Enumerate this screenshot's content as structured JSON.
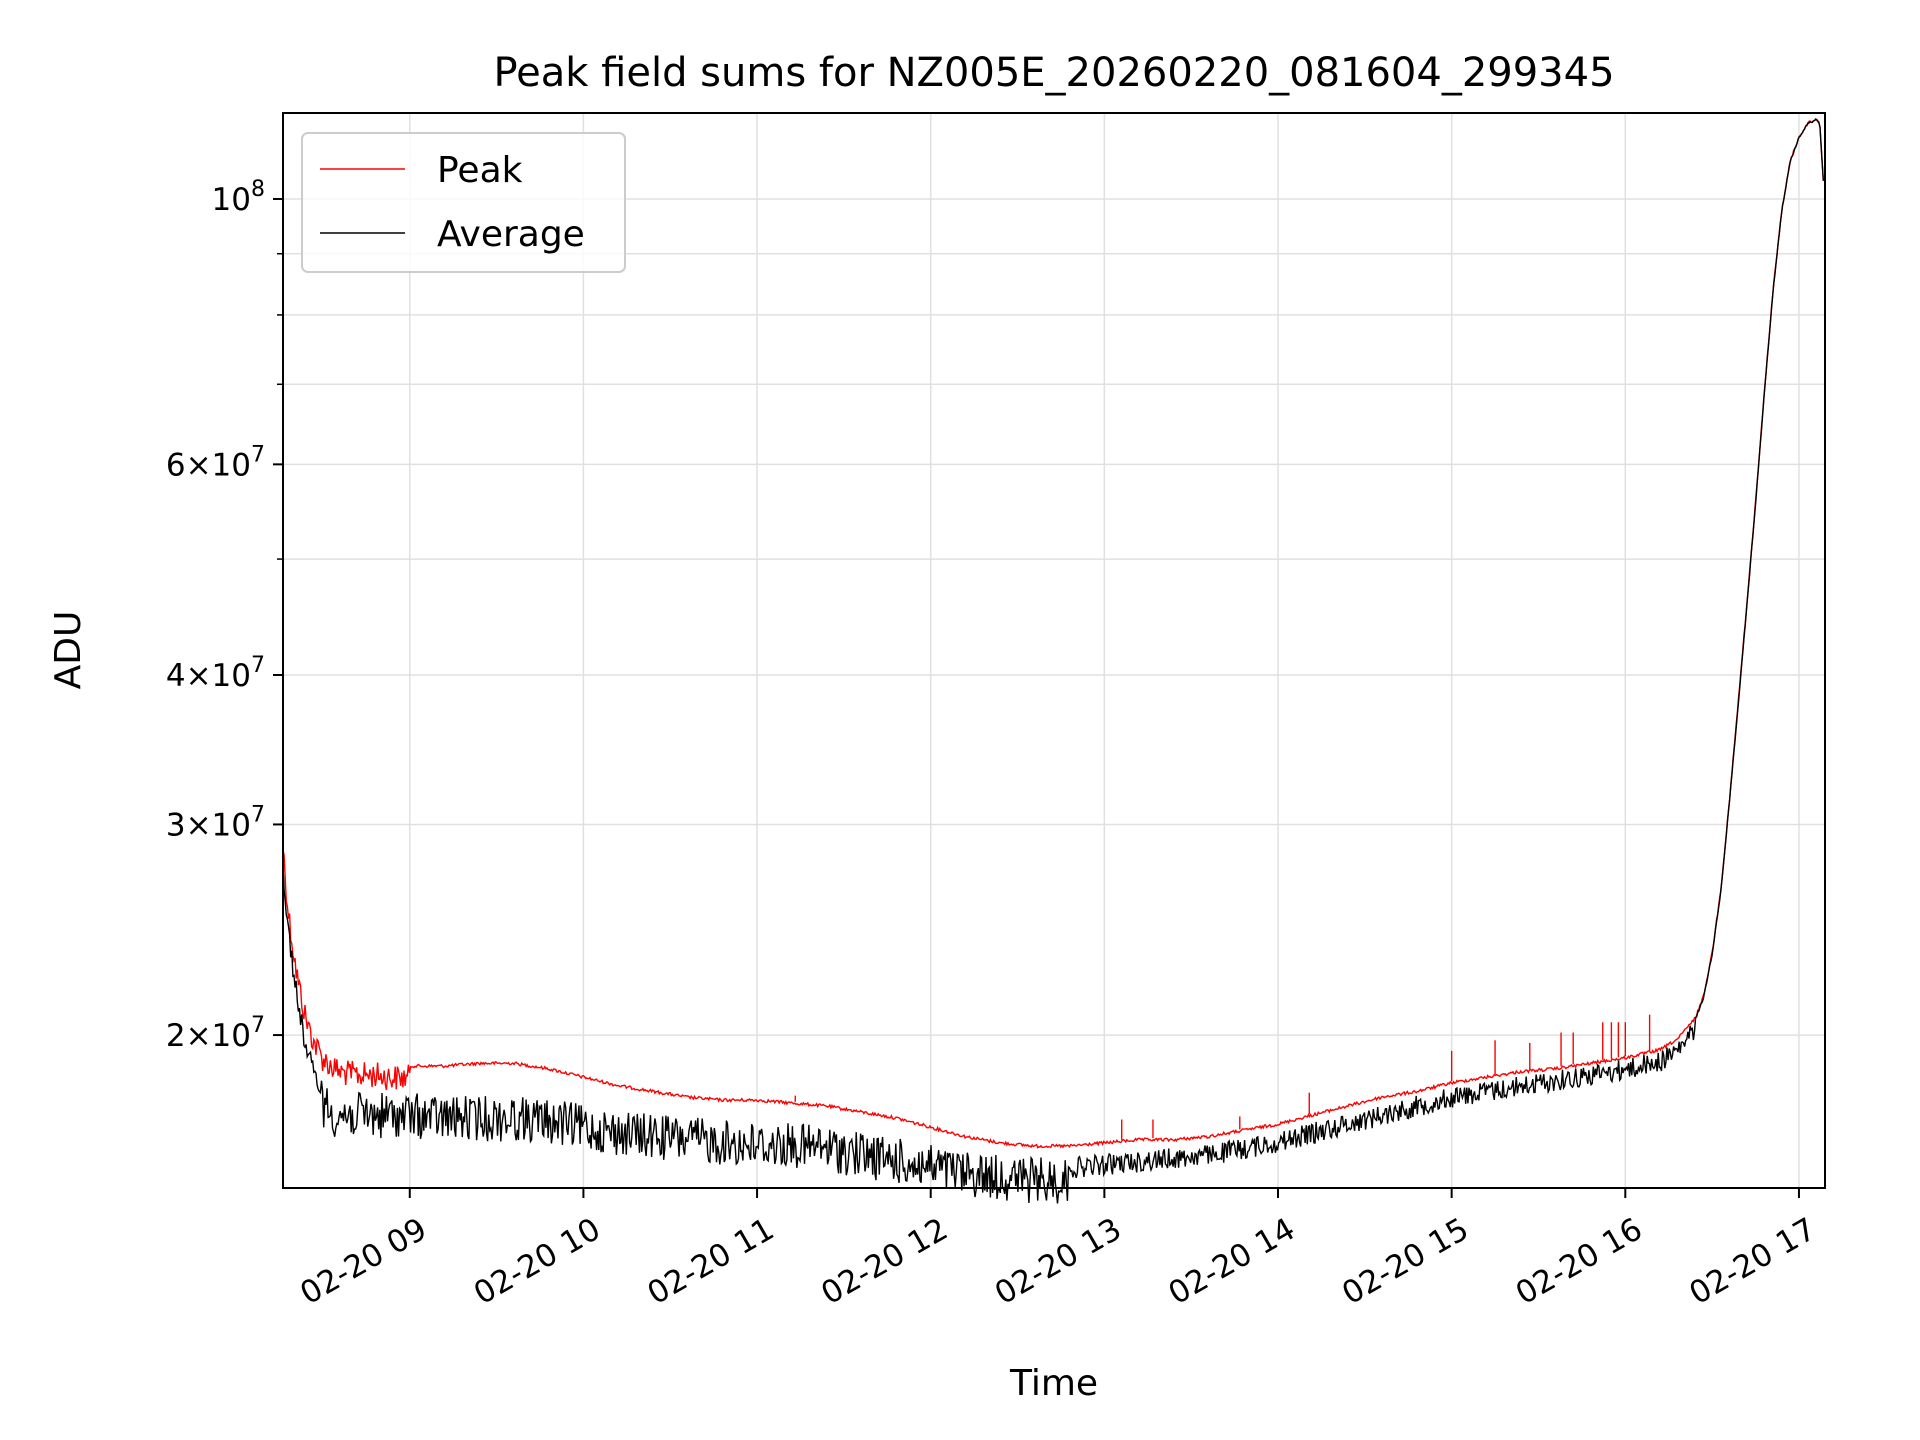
{
  "chart_data": {
    "type": "line",
    "title": "Peak field sums for NZ005E_20260220_081604_299345",
    "xlabel": "Time",
    "ylabel": "ADU",
    "yscale": "log",
    "xlim": [
      8.27,
      17.15
    ],
    "ylim": [
      14900000,
      118000000
    ],
    "grid": true,
    "legend_position": "top-left",
    "x_ticks": [
      {
        "value": 9,
        "label": "02-20 09"
      },
      {
        "value": 10,
        "label": "02-20 10"
      },
      {
        "value": 11,
        "label": "02-20 11"
      },
      {
        "value": 12,
        "label": "02-20 12"
      },
      {
        "value": 13,
        "label": "02-20 13"
      },
      {
        "value": 14,
        "label": "02-20 14"
      },
      {
        "value": 15,
        "label": "02-20 15"
      },
      {
        "value": 16,
        "label": "02-20 16"
      },
      {
        "value": 17,
        "label": "02-20 17"
      }
    ],
    "y_ticks": [
      {
        "value": 20000000,
        "mant": "2",
        "exp": "7"
      },
      {
        "value": 30000000,
        "mant": "3",
        "exp": "7"
      },
      {
        "value": 40000000,
        "mant": "4",
        "exp": "7"
      },
      {
        "value": 60000000,
        "mant": "6",
        "exp": "7"
      },
      {
        "value": 100000000,
        "mant": "",
        "exp": "8"
      }
    ],
    "y_minor_ticks": [
      50000000,
      70000000,
      80000000,
      90000000
    ],
    "series": [
      {
        "name": "Peak",
        "color": "#ff0000",
        "x": [
          8.27,
          8.3,
          8.35,
          8.4,
          8.45,
          8.5,
          8.55,
          8.6,
          8.7,
          8.8,
          8.9,
          9.0,
          9.2,
          9.4,
          9.6,
          9.8,
          10.0,
          10.2,
          10.4,
          10.6,
          10.8,
          11.0,
          11.2,
          11.4,
          11.6,
          11.8,
          12.0,
          12.2,
          12.4,
          12.6,
          12.8,
          13.0,
          13.2,
          13.4,
          13.6,
          13.8,
          14.0,
          14.2,
          14.4,
          14.6,
          14.8,
          15.0,
          15.2,
          15.4,
          15.6,
          15.8,
          16.0,
          16.2,
          16.3,
          16.4,
          16.45,
          16.5,
          16.55,
          16.6,
          16.65,
          16.7,
          16.75,
          16.8,
          16.85,
          16.9,
          16.95,
          17.0,
          17.05,
          17.1,
          17.12,
          17.14
        ],
        "y": [
          29500000,
          26000000,
          23000000,
          21200000,
          20200000,
          19600000,
          19300000,
          19100000,
          19000000,
          19000000,
          18900000,
          18900000,
          18900000,
          19000000,
          19000000,
          18800000,
          18500000,
          18200000,
          18000000,
          17800000,
          17700000,
          17700000,
          17600000,
          17500000,
          17300000,
          17100000,
          16800000,
          16500000,
          16300000,
          16200000,
          16200000,
          16300000,
          16400000,
          16400000,
          16500000,
          16700000,
          16900000,
          17200000,
          17500000,
          17800000,
          18000000,
          18300000,
          18500000,
          18700000,
          18800000,
          19000000,
          19200000,
          19500000,
          19900000,
          20700000,
          21600000,
          23500000,
          26500000,
          31500000,
          38000000,
          46000000,
          56000000,
          69000000,
          84000000,
          98000000,
          108000000,
          113000000,
          116000000,
          117000000,
          116000000,
          104000000
        ],
        "spikes": [
          {
            "x": 11.22,
            "y": 17800000
          },
          {
            "x": 13.1,
            "y": 17000000
          },
          {
            "x": 13.28,
            "y": 17000000
          },
          {
            "x": 13.78,
            "y": 17100000
          },
          {
            "x": 14.18,
            "y": 17900000
          },
          {
            "x": 15.0,
            "y": 19400000
          },
          {
            "x": 15.25,
            "y": 19800000
          },
          {
            "x": 15.45,
            "y": 19700000
          },
          {
            "x": 15.63,
            "y": 20100000
          },
          {
            "x": 15.7,
            "y": 20100000
          },
          {
            "x": 15.87,
            "y": 20500000
          },
          {
            "x": 15.92,
            "y": 20500000
          },
          {
            "x": 15.96,
            "y": 20500000
          },
          {
            "x": 16.0,
            "y": 20500000
          },
          {
            "x": 16.14,
            "y": 20800000
          }
        ]
      },
      {
        "name": "Average",
        "color": "#000000",
        "x": [
          8.27,
          8.3,
          8.35,
          8.4,
          8.45,
          8.5,
          8.55,
          8.6,
          8.7,
          8.8,
          8.9,
          9.0,
          9.2,
          9.4,
          9.6,
          9.8,
          10.0,
          10.2,
          10.4,
          10.6,
          10.8,
          11.0,
          11.2,
          11.4,
          11.6,
          11.8,
          12.0,
          12.2,
          12.4,
          12.6,
          12.8,
          13.0,
          13.2,
          13.4,
          13.6,
          13.8,
          14.0,
          14.2,
          14.4,
          14.6,
          14.8,
          15.0,
          15.2,
          15.4,
          15.6,
          15.8,
          16.0,
          16.2,
          16.3,
          16.4,
          16.45,
          16.5,
          16.55,
          16.6,
          16.65,
          16.7,
          16.75,
          16.8,
          16.85,
          16.9,
          16.95,
          17.0,
          17.05,
          17.1,
          17.12,
          17.14
        ],
        "y": [
          28000000,
          25000000,
          22000000,
          20000000,
          18900000,
          18300000,
          18000000,
          17900000,
          17900000,
          17900000,
          17900000,
          17900000,
          17800000,
          17800000,
          17800000,
          17700000,
          17500000,
          17300000,
          17200000,
          17100000,
          17000000,
          16900000,
          16900000,
          16800000,
          16600000,
          16400000,
          16200000,
          16000000,
          15900000,
          15800000,
          15800000,
          15900000,
          16000000,
          16100000,
          16200000,
          16400000,
          16600000,
          16900000,
          17200000,
          17500000,
          17800000,
          18100000,
          18300000,
          18500000,
          18700000,
          18900000,
          19100000,
          19400000,
          19800000,
          20600000,
          21500000,
          23400000,
          26400000,
          31400000,
          37800000,
          45800000,
          55800000,
          68800000,
          83800000,
          97800000,
          107800000,
          112800000,
          115800000,
          116800000,
          115800000,
          103800000
        ]
      }
    ]
  }
}
